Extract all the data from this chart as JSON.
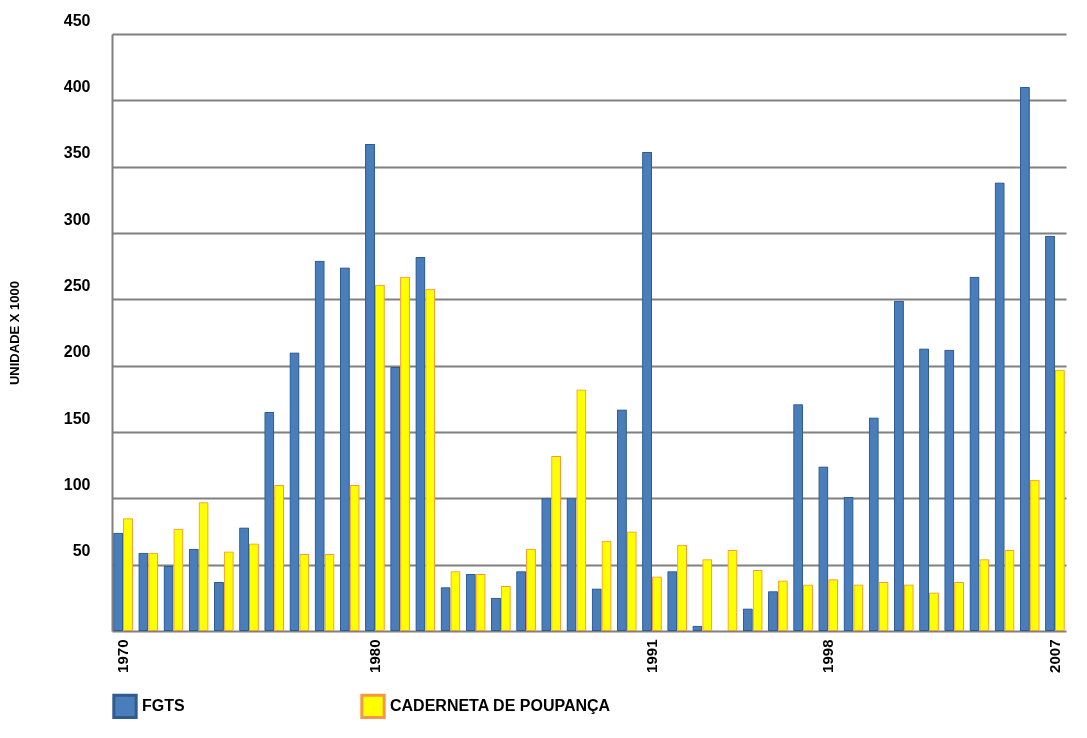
{
  "chart_data": {
    "type": "bar",
    "ylabel": "UNIDADE X 1000",
    "categories": [
      "1970",
      null,
      null,
      null,
      null,
      null,
      null,
      null,
      null,
      null,
      "1980",
      null,
      null,
      null,
      null,
      null,
      null,
      null,
      null,
      null,
      null,
      "1991",
      null,
      null,
      null,
      null,
      null,
      null,
      "1998",
      null,
      null,
      null,
      null,
      null,
      null,
      null,
      null,
      "2007"
    ],
    "series": [
      {
        "name": "FGTS",
        "color": "#4a7ebb",
        "values": [
          74,
          59,
          49,
          62,
          37,
          78,
          165,
          210,
          279,
          274,
          367,
          199,
          282,
          33,
          43,
          25,
          45,
          100,
          100,
          32,
          167,
          361,
          45,
          4,
          null,
          17,
          30,
          171,
          124,
          101,
          161,
          249,
          213,
          212,
          267,
          338,
          410,
          298
        ]
      },
      {
        "name": "CADERNETA DE POUPANÇA",
        "color": "#ffff00",
        "values": [
          85,
          59,
          77,
          97,
          60,
          66,
          110,
          58,
          58,
          110,
          261,
          267,
          258,
          45,
          43,
          34,
          62,
          132,
          182,
          68,
          75,
          41,
          65,
          54,
          61,
          46,
          38,
          35,
          39,
          35,
          37,
          35,
          29,
          37,
          54,
          61,
          114,
          197
        ]
      }
    ],
    "ylim": [
      0,
      450
    ],
    "yticks": [
      {
        "value": 0,
        "label": null
      },
      50,
      100,
      150,
      200,
      250,
      300,
      350,
      400,
      450
    ],
    "grid": "y",
    "legend": "bottom"
  }
}
